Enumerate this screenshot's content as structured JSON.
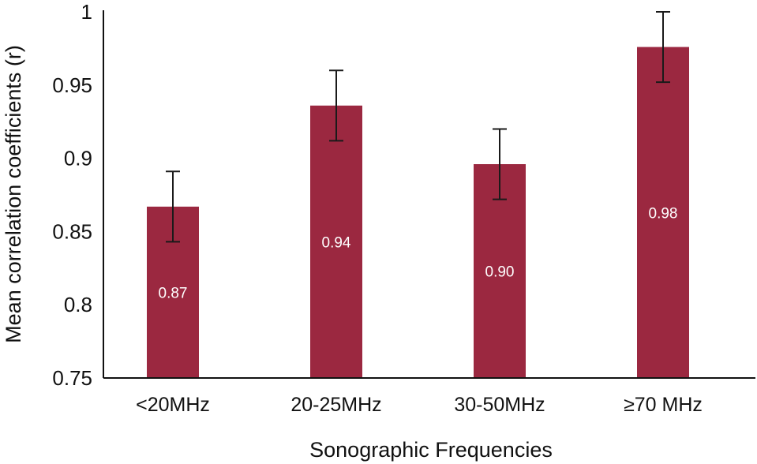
{
  "chart_data": {
    "type": "bar",
    "title": "",
    "xlabel": "Sonographic Frequencies",
    "ylabel": "Mean correlation coefficients (r)",
    "categories": [
      "<20MHz",
      "20-25MHz",
      "30-50MHz",
      "≥70 MHz"
    ],
    "values": [
      0.867,
      0.936,
      0.896,
      0.976
    ],
    "value_labels": [
      "0.87",
      "0.94",
      "0.90",
      "0.98"
    ],
    "error_bars": [
      {
        "low": 0.843,
        "high": 0.891
      },
      {
        "low": 0.912,
        "high": 0.96
      },
      {
        "low": 0.872,
        "high": 0.92
      },
      {
        "low": 0.952,
        "high": 1.0
      }
    ],
    "ylim": [
      0.75,
      1.0
    ],
    "y_ticks": [
      0.75,
      0.8,
      0.85,
      0.9,
      0.95,
      1.0
    ],
    "y_tick_labels": [
      "0.75",
      "0.8",
      "0.85",
      "0.9",
      "0.95",
      "1"
    ],
    "grid": false,
    "legend": "none",
    "colors": {
      "bar": "#9b2840",
      "error_bar": "#1a1a1a",
      "axis": "#111111",
      "data_label": "#ffffff"
    }
  }
}
